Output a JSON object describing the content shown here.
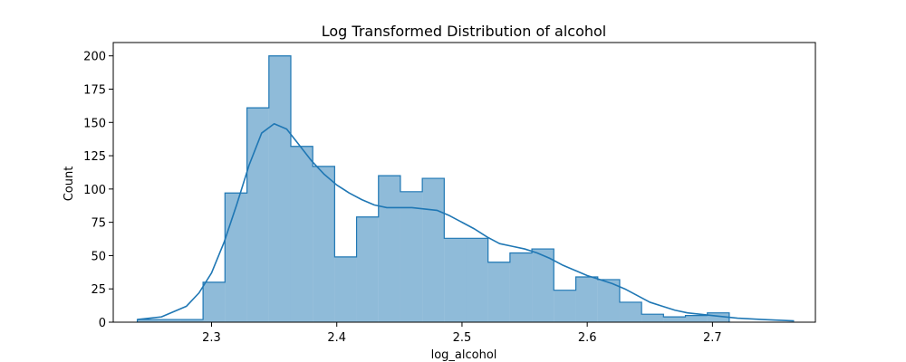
{
  "chart_data": {
    "type": "bar",
    "title": "Log Transformed Distribution of alcohol",
    "xlabel": "log_alcohol",
    "ylabel": "Count",
    "xlim": [
      2.2215,
      2.7822
    ],
    "ylim": [
      0,
      210
    ],
    "x_ticks": [
      2.3,
      2.4,
      2.5,
      2.6,
      2.7
    ],
    "x_tick_labels": [
      "2.3",
      "2.4",
      "2.5",
      "2.6",
      "2.7"
    ],
    "y_ticks": [
      0,
      25,
      50,
      75,
      100,
      125,
      150,
      175,
      200
    ],
    "y_tick_labels": [
      "0",
      "25",
      "50",
      "75",
      "100",
      "125",
      "150",
      "175",
      "200"
    ],
    "grid": false,
    "histogram": {
      "bin_edges": [
        2.2407,
        2.2582,
        2.2757,
        2.2932,
        2.3107,
        2.3283,
        2.3458,
        2.3633,
        2.3808,
        2.3983,
        2.4158,
        2.4333,
        2.4508,
        2.4683,
        2.4858,
        2.5033,
        2.5208,
        2.5383,
        2.5558,
        2.5733,
        2.5909,
        2.6084,
        2.6259,
        2.6434,
        2.6609,
        2.6784,
        2.6959,
        2.7134
      ],
      "counts": [
        2,
        2,
        2,
        30,
        97,
        161,
        200,
        132,
        117,
        49,
        79,
        110,
        98,
        108,
        63,
        63,
        45,
        52,
        55,
        24,
        34,
        32,
        15,
        6,
        4,
        5,
        7
      ],
      "fill_color": "#1f77b4",
      "fill_opacity": 0.5,
      "edge_color": "#1f77b4"
    },
    "kde": {
      "color": "#1f77b4",
      "x": [
        2.2407,
        2.26,
        2.28,
        2.29,
        2.3,
        2.31,
        2.32,
        2.33,
        2.34,
        2.35,
        2.36,
        2.37,
        2.38,
        2.39,
        2.4,
        2.41,
        2.42,
        2.43,
        2.44,
        2.45,
        2.46,
        2.47,
        2.48,
        2.49,
        2.5,
        2.51,
        2.52,
        2.53,
        2.54,
        2.55,
        2.56,
        2.57,
        2.58,
        2.59,
        2.6,
        2.61,
        2.62,
        2.63,
        2.64,
        2.65,
        2.66,
        2.67,
        2.68,
        2.69,
        2.7,
        2.72,
        2.74,
        2.7652
      ],
      "y": [
        2,
        4,
        12,
        22,
        37,
        60,
        88,
        118,
        142,
        149,
        145,
        133,
        121,
        111,
        103,
        97,
        92,
        88,
        86,
        86,
        86,
        85,
        84,
        80,
        75,
        70,
        64,
        59,
        57,
        55,
        52,
        48,
        43,
        39,
        35,
        32,
        29,
        25,
        20,
        15,
        12,
        9,
        7,
        6,
        5,
        3,
        2,
        1
      ]
    }
  }
}
